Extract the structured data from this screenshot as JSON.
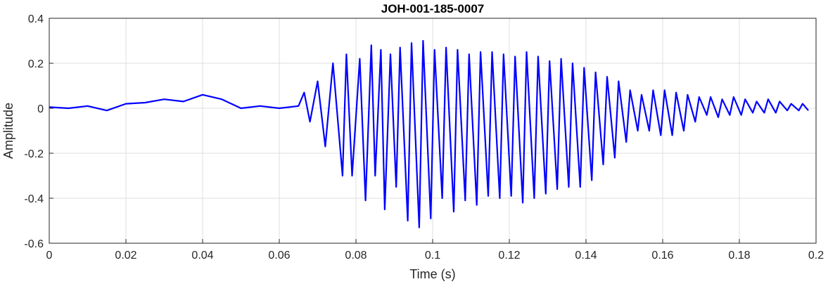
{
  "chart_data": {
    "type": "line",
    "title": "JOH-001-185-0007",
    "xlabel": "Time (s)",
    "ylabel": "Amplitude",
    "xlim": [
      0,
      0.2
    ],
    "ylim": [
      -0.6,
      0.4
    ],
    "x_ticks": [
      0,
      0.02,
      0.04,
      0.06,
      0.08,
      0.1,
      0.12,
      0.14,
      0.16,
      0.18,
      0.2
    ],
    "x_tick_labels": [
      "0",
      "0.02",
      "0.04",
      "0.06",
      "0.08",
      "0.1",
      "0.12",
      "0.14",
      "0.16",
      "0.18",
      "0.2"
    ],
    "y_ticks": [
      0.4,
      0.2,
      0,
      -0.2,
      -0.4,
      -0.6
    ],
    "y_tick_labels": [
      "0.4",
      "0.2",
      "0",
      "-0.2",
      "-0.4",
      "-0.6"
    ],
    "grid": true,
    "line_color": "#0000ff",
    "series": [
      {
        "x": [
          0,
          0.005,
          0.01,
          0.015,
          0.02,
          0.025,
          0.03,
          0.035,
          0.04,
          0.045,
          0.05,
          0.055,
          0.06,
          0.065,
          0.0665,
          0.068,
          0.07,
          0.072,
          0.074,
          0.0765,
          0.0775,
          0.079,
          0.081,
          0.0825,
          0.084,
          0.085,
          0.0865,
          0.0875,
          0.089,
          0.0905,
          0.0915,
          0.0935,
          0.0945,
          0.0965,
          0.0975,
          0.0995,
          0.1005,
          0.1025,
          0.1035,
          0.1055,
          0.1065,
          0.1085,
          0.1095,
          0.1115,
          0.1125,
          0.1145,
          0.1155,
          0.1175,
          0.1185,
          0.1205,
          0.1215,
          0.1235,
          0.1245,
          0.1265,
          0.1275,
          0.1295,
          0.1305,
          0.1325,
          0.1335,
          0.1355,
          0.1365,
          0.1385,
          0.1395,
          0.1415,
          0.1425,
          0.1445,
          0.1455,
          0.1475,
          0.1485,
          0.1505,
          0.1515,
          0.1535,
          0.1545,
          0.1565,
          0.1575,
          0.1595,
          0.1605,
          0.1625,
          0.1635,
          0.1655,
          0.1665,
          0.1685,
          0.1695,
          0.1715,
          0.1725,
          0.1745,
          0.1755,
          0.1775,
          0.1785,
          0.1805,
          0.1815,
          0.1835,
          0.1845,
          0.1865,
          0.1875,
          0.1895,
          0.1905,
          0.1925,
          0.1935,
          0.1955,
          0.1965,
          0.198
        ],
        "y": [
          0.005,
          0.0,
          0.01,
          -0.01,
          0.02,
          0.025,
          0.04,
          0.03,
          0.06,
          0.04,
          0.0,
          0.01,
          0.0,
          0.01,
          0.07,
          -0.06,
          0.12,
          -0.17,
          0.2,
          -0.3,
          0.24,
          -0.3,
          0.22,
          -0.41,
          0.28,
          -0.3,
          0.26,
          -0.45,
          0.24,
          -0.35,
          0.27,
          -0.5,
          0.29,
          -0.53,
          0.3,
          -0.49,
          0.26,
          -0.4,
          0.27,
          -0.46,
          0.26,
          -0.41,
          0.24,
          -0.43,
          0.25,
          -0.39,
          0.25,
          -0.4,
          0.24,
          -0.39,
          0.23,
          -0.42,
          0.25,
          -0.4,
          0.23,
          -0.38,
          0.21,
          -0.36,
          0.22,
          -0.35,
          0.2,
          -0.35,
          0.18,
          -0.32,
          0.16,
          -0.25,
          0.14,
          -0.22,
          0.12,
          -0.15,
          0.08,
          -0.1,
          0.06,
          -0.1,
          0.08,
          -0.12,
          0.08,
          -0.12,
          0.07,
          -0.1,
          0.06,
          -0.06,
          0.05,
          -0.03,
          0.05,
          -0.04,
          0.04,
          -0.03,
          0.05,
          -0.03,
          0.04,
          -0.02,
          0.03,
          -0.02,
          0.04,
          -0.02,
          0.03,
          -0.01,
          0.02,
          -0.01,
          0.02,
          -0.01
        ]
      }
    ]
  }
}
